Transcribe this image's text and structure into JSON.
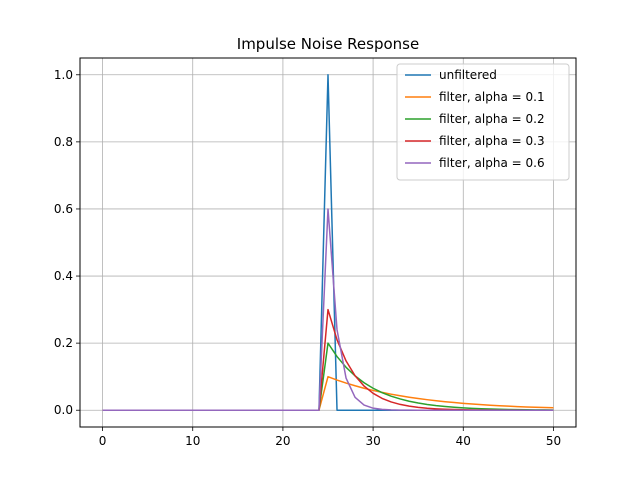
{
  "chart_data": {
    "type": "line",
    "title": "Impulse Noise Response",
    "xlabel": "",
    "ylabel": "",
    "xlim": [
      -2.5,
      52.5
    ],
    "ylim": [
      -0.05,
      1.05
    ],
    "x_ticks": [
      0,
      10,
      20,
      30,
      40,
      50
    ],
    "x_tick_labels": [
      "0",
      "10",
      "20",
      "30",
      "40",
      "50"
    ],
    "y_ticks": [
      0.0,
      0.2,
      0.4,
      0.6,
      0.8,
      1.0
    ],
    "y_tick_labels": [
      "0.0",
      "0.2",
      "0.4",
      "0.6",
      "0.8",
      "1.0"
    ],
    "grid": true,
    "legend_position": "top-right",
    "x": [
      0,
      1,
      2,
      3,
      4,
      5,
      6,
      7,
      8,
      9,
      10,
      11,
      12,
      13,
      14,
      15,
      16,
      17,
      18,
      19,
      20,
      21,
      22,
      23,
      24,
      25,
      26,
      27,
      28,
      29,
      30,
      31,
      32,
      33,
      34,
      35,
      36,
      37,
      38,
      39,
      40,
      41,
      42,
      43,
      44,
      45,
      46,
      47,
      48,
      49,
      50
    ],
    "series": [
      {
        "name": "unfiltered",
        "color": "#1f77b4",
        "values": [
          0,
          0,
          0,
          0,
          0,
          0,
          0,
          0,
          0,
          0,
          0,
          0,
          0,
          0,
          0,
          0,
          0,
          0,
          0,
          0,
          0,
          0,
          0,
          0,
          0,
          1.0,
          0,
          0,
          0,
          0,
          0,
          0,
          0,
          0,
          0,
          0,
          0,
          0,
          0,
          0,
          0,
          0,
          0,
          0,
          0,
          0,
          0,
          0,
          0,
          0,
          0
        ]
      },
      {
        "name": "filter, alpha = 0.1",
        "color": "#ff7f0e",
        "values": [
          0,
          0,
          0,
          0,
          0,
          0,
          0,
          0,
          0,
          0,
          0,
          0,
          0,
          0,
          0,
          0,
          0,
          0,
          0,
          0,
          0,
          0,
          0,
          0,
          0,
          0.1,
          0.09,
          0.081,
          0.0729,
          0.0656,
          0.059,
          0.0531,
          0.0478,
          0.043,
          0.0387,
          0.0349,
          0.0314,
          0.0282,
          0.0254,
          0.0229,
          0.0206,
          0.0185,
          0.0167,
          0.015,
          0.0135,
          0.0122,
          0.0109,
          0.0098,
          0.0089,
          0.008,
          0.0072
        ]
      },
      {
        "name": "filter, alpha = 0.2",
        "color": "#2ca02c",
        "values": [
          0,
          0,
          0,
          0,
          0,
          0,
          0,
          0,
          0,
          0,
          0,
          0,
          0,
          0,
          0,
          0,
          0,
          0,
          0,
          0,
          0,
          0,
          0,
          0,
          0,
          0.2,
          0.16,
          0.128,
          0.1024,
          0.0819,
          0.0655,
          0.0524,
          0.0419,
          0.0336,
          0.0268,
          0.0215,
          0.0172,
          0.0137,
          0.011,
          0.0088,
          0.007,
          0.0056,
          0.0045,
          0.0036,
          0.0029,
          0.0023,
          0.0018,
          0.0015,
          0.0012,
          0.0009,
          0.0008
        ]
      },
      {
        "name": "filter, alpha = 0.3",
        "color": "#d62728",
        "values": [
          0,
          0,
          0,
          0,
          0,
          0,
          0,
          0,
          0,
          0,
          0,
          0,
          0,
          0,
          0,
          0,
          0,
          0,
          0,
          0,
          0,
          0,
          0,
          0,
          0,
          0.3,
          0.21,
          0.147,
          0.1029,
          0.072,
          0.0504,
          0.0353,
          0.0247,
          0.0173,
          0.0121,
          0.0085,
          0.0059,
          0.0042,
          0.0029,
          0.002,
          0.0014,
          0.001,
          0.0007,
          0.0005,
          0.0003,
          0.0002,
          0.0002,
          0.0001,
          0.0001,
          0.0001,
          0.0
        ]
      },
      {
        "name": "filter, alpha = 0.6",
        "color": "#9467bd",
        "values": [
          0,
          0,
          0,
          0,
          0,
          0,
          0,
          0,
          0,
          0,
          0,
          0,
          0,
          0,
          0,
          0,
          0,
          0,
          0,
          0,
          0,
          0,
          0,
          0,
          0,
          0.6,
          0.24,
          0.096,
          0.0384,
          0.0154,
          0.0061,
          0.0025,
          0.001,
          0.0004,
          0.0002,
          0.0001,
          0,
          0,
          0,
          0,
          0,
          0,
          0,
          0,
          0,
          0,
          0,
          0,
          0,
          0,
          0
        ]
      }
    ]
  }
}
